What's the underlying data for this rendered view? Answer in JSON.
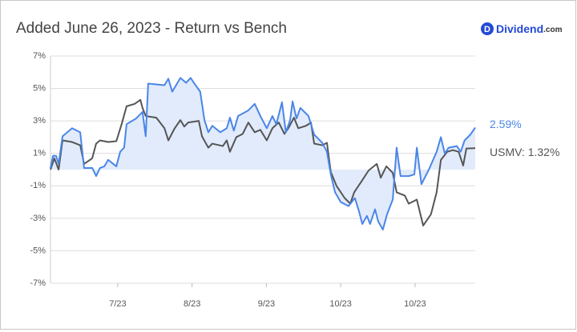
{
  "chart_data": {
    "type": "line",
    "title": "Added June 26, 2023 - Return vs Bench",
    "logo": {
      "icon": "D",
      "name": "Dividend",
      "suffix": ".com"
    },
    "xlim": [
      0,
      120
    ],
    "xticks": [
      {
        "value": 19,
        "label": "7/23"
      },
      {
        "value": 40,
        "label": "8/23"
      },
      {
        "value": 61,
        "label": "9/23"
      },
      {
        "value": 82,
        "label": "10/23"
      },
      {
        "value": 103,
        "label": "10/23"
      }
    ],
    "ylim": [
      -7,
      7
    ],
    "yticks": [
      {
        "value": 7,
        "label": "7%"
      },
      {
        "value": 5,
        "label": "5%"
      },
      {
        "value": 3,
        "label": "3%"
      },
      {
        "value": 1,
        "label": "1%"
      },
      {
        "value": -1,
        "label": "-1%"
      },
      {
        "value": -3,
        "label": "-3%"
      },
      {
        "value": -5,
        "label": "-5%"
      },
      {
        "value": -7,
        "label": "-7%"
      }
    ],
    "grid": true,
    "series": [
      {
        "color": "#4a86e8",
        "fill": "#e1ebfb",
        "label": "2.59%",
        "x": [
          0,
          0.7,
          1.6,
          2.3,
          3.4,
          6.1,
          8.4,
          9.5,
          11.8,
          12.9,
          14.0,
          15.2,
          16.3,
          18.6,
          19.7,
          20.8,
          21.5,
          24.2,
          26.0,
          26.9,
          27.6,
          32.2,
          33.3,
          34.4,
          36.7,
          38.3,
          39.6,
          40.5,
          42.3,
          43.5,
          44.6,
          45.7,
          48.0,
          49.8,
          50.7,
          51.8,
          53.0,
          55.9,
          57.7,
          59.3,
          61.1,
          62.7,
          63.8,
          65.4,
          66.5,
          67.7,
          68.4,
          69.5,
          70.6,
          72.9,
          74.5,
          76.8,
          78.1,
          79.2,
          80.4,
          82.0,
          84.2,
          86.0,
          87.2,
          88.1,
          89.4,
          90.3,
          91.7,
          92.6,
          93.9,
          95.1,
          96.7,
          97.8,
          98.9,
          101.2,
          102.8,
          103.5,
          104.8,
          106.9,
          109.1,
          110.3,
          111.4,
          112.5,
          114.8,
          115.9,
          117.0,
          118.6,
          120
        ],
        "values": [
          0.1,
          0.85,
          0.85,
          0.35,
          2.05,
          2.55,
          2.3,
          0.1,
          0.1,
          -0.4,
          0.1,
          0.2,
          0.6,
          0.2,
          1.1,
          1.35,
          2.8,
          3.15,
          3.55,
          2.05,
          5.3,
          5.2,
          5.6,
          4.8,
          5.65,
          5.35,
          5.65,
          5.35,
          4.8,
          3.05,
          2.3,
          2.7,
          2.3,
          2.55,
          3.2,
          2.4,
          3.3,
          3.65,
          4.05,
          3.3,
          2.55,
          3.3,
          2.8,
          4.15,
          2.3,
          3.05,
          4.2,
          3.15,
          3.8,
          3.3,
          2.15,
          1.65,
          1.1,
          -0.3,
          -1.4,
          -2.0,
          -2.25,
          -1.75,
          -2.6,
          -3.35,
          -2.85,
          -3.35,
          -2.45,
          -3.2,
          -3.7,
          -2.75,
          -1.85,
          1.35,
          -0.4,
          -0.4,
          -0.3,
          1.35,
          -0.9,
          0,
          1.1,
          2.0,
          1.0,
          1.35,
          1.45,
          1.1,
          1.8,
          2.15,
          2.59
        ]
      },
      {
        "color": "#555555",
        "label": "USMV: 1.32%",
        "x": [
          0,
          1.1,
          2.3,
          3.4,
          6.1,
          8.4,
          9.5,
          11.8,
          12.9,
          14.0,
          16.3,
          18.6,
          20.1,
          21.5,
          23.8,
          25.4,
          26.0,
          26.9,
          29.9,
          32.2,
          33.3,
          35.1,
          36.7,
          37.8,
          38.9,
          41.9,
          42.8,
          44.6,
          45.7,
          48.7,
          49.8,
          50.7,
          52.5,
          54.3,
          55.9,
          57.7,
          59.3,
          61.1,
          62.7,
          64.5,
          66.1,
          67.2,
          68.8,
          70.0,
          72.2,
          73.6,
          74.5,
          76.8,
          78.1,
          79.2,
          80.8,
          83.1,
          84.7,
          85.8,
          88.1,
          89.9,
          92.2,
          93.3,
          94.9,
          96.7,
          97.8,
          100.1,
          101.2,
          103.5,
          105.3,
          107.5,
          109.1,
          110.3,
          112.1,
          113.7,
          115.3,
          116.6,
          117.5,
          120
        ],
        "values": [
          0,
          0.7,
          0,
          1.8,
          1.7,
          1.5,
          0.35,
          0.7,
          1.6,
          1.8,
          1.7,
          1.75,
          2.8,
          3.9,
          4.05,
          4.3,
          3.8,
          3.3,
          3.2,
          2.55,
          1.8,
          2.55,
          3.05,
          2.65,
          2.9,
          3.0,
          2.05,
          1.35,
          1.6,
          1.45,
          1.8,
          1.1,
          2.0,
          2.2,
          2.9,
          2.3,
          2.45,
          1.8,
          2.55,
          2.9,
          2.2,
          2.55,
          3.2,
          2.55,
          2.7,
          2.9,
          1.6,
          1.5,
          1.65,
          -0.15,
          -1.0,
          -1.75,
          -2.1,
          -1.4,
          -0.65,
          -0.05,
          0.35,
          -0.5,
          0.2,
          -0.2,
          -1.4,
          -1.6,
          -2.1,
          -1.85,
          -3.45,
          -2.75,
          -1.4,
          0.6,
          1.1,
          1.2,
          1.1,
          0.25,
          1.3,
          1.32
        ]
      }
    ]
  }
}
